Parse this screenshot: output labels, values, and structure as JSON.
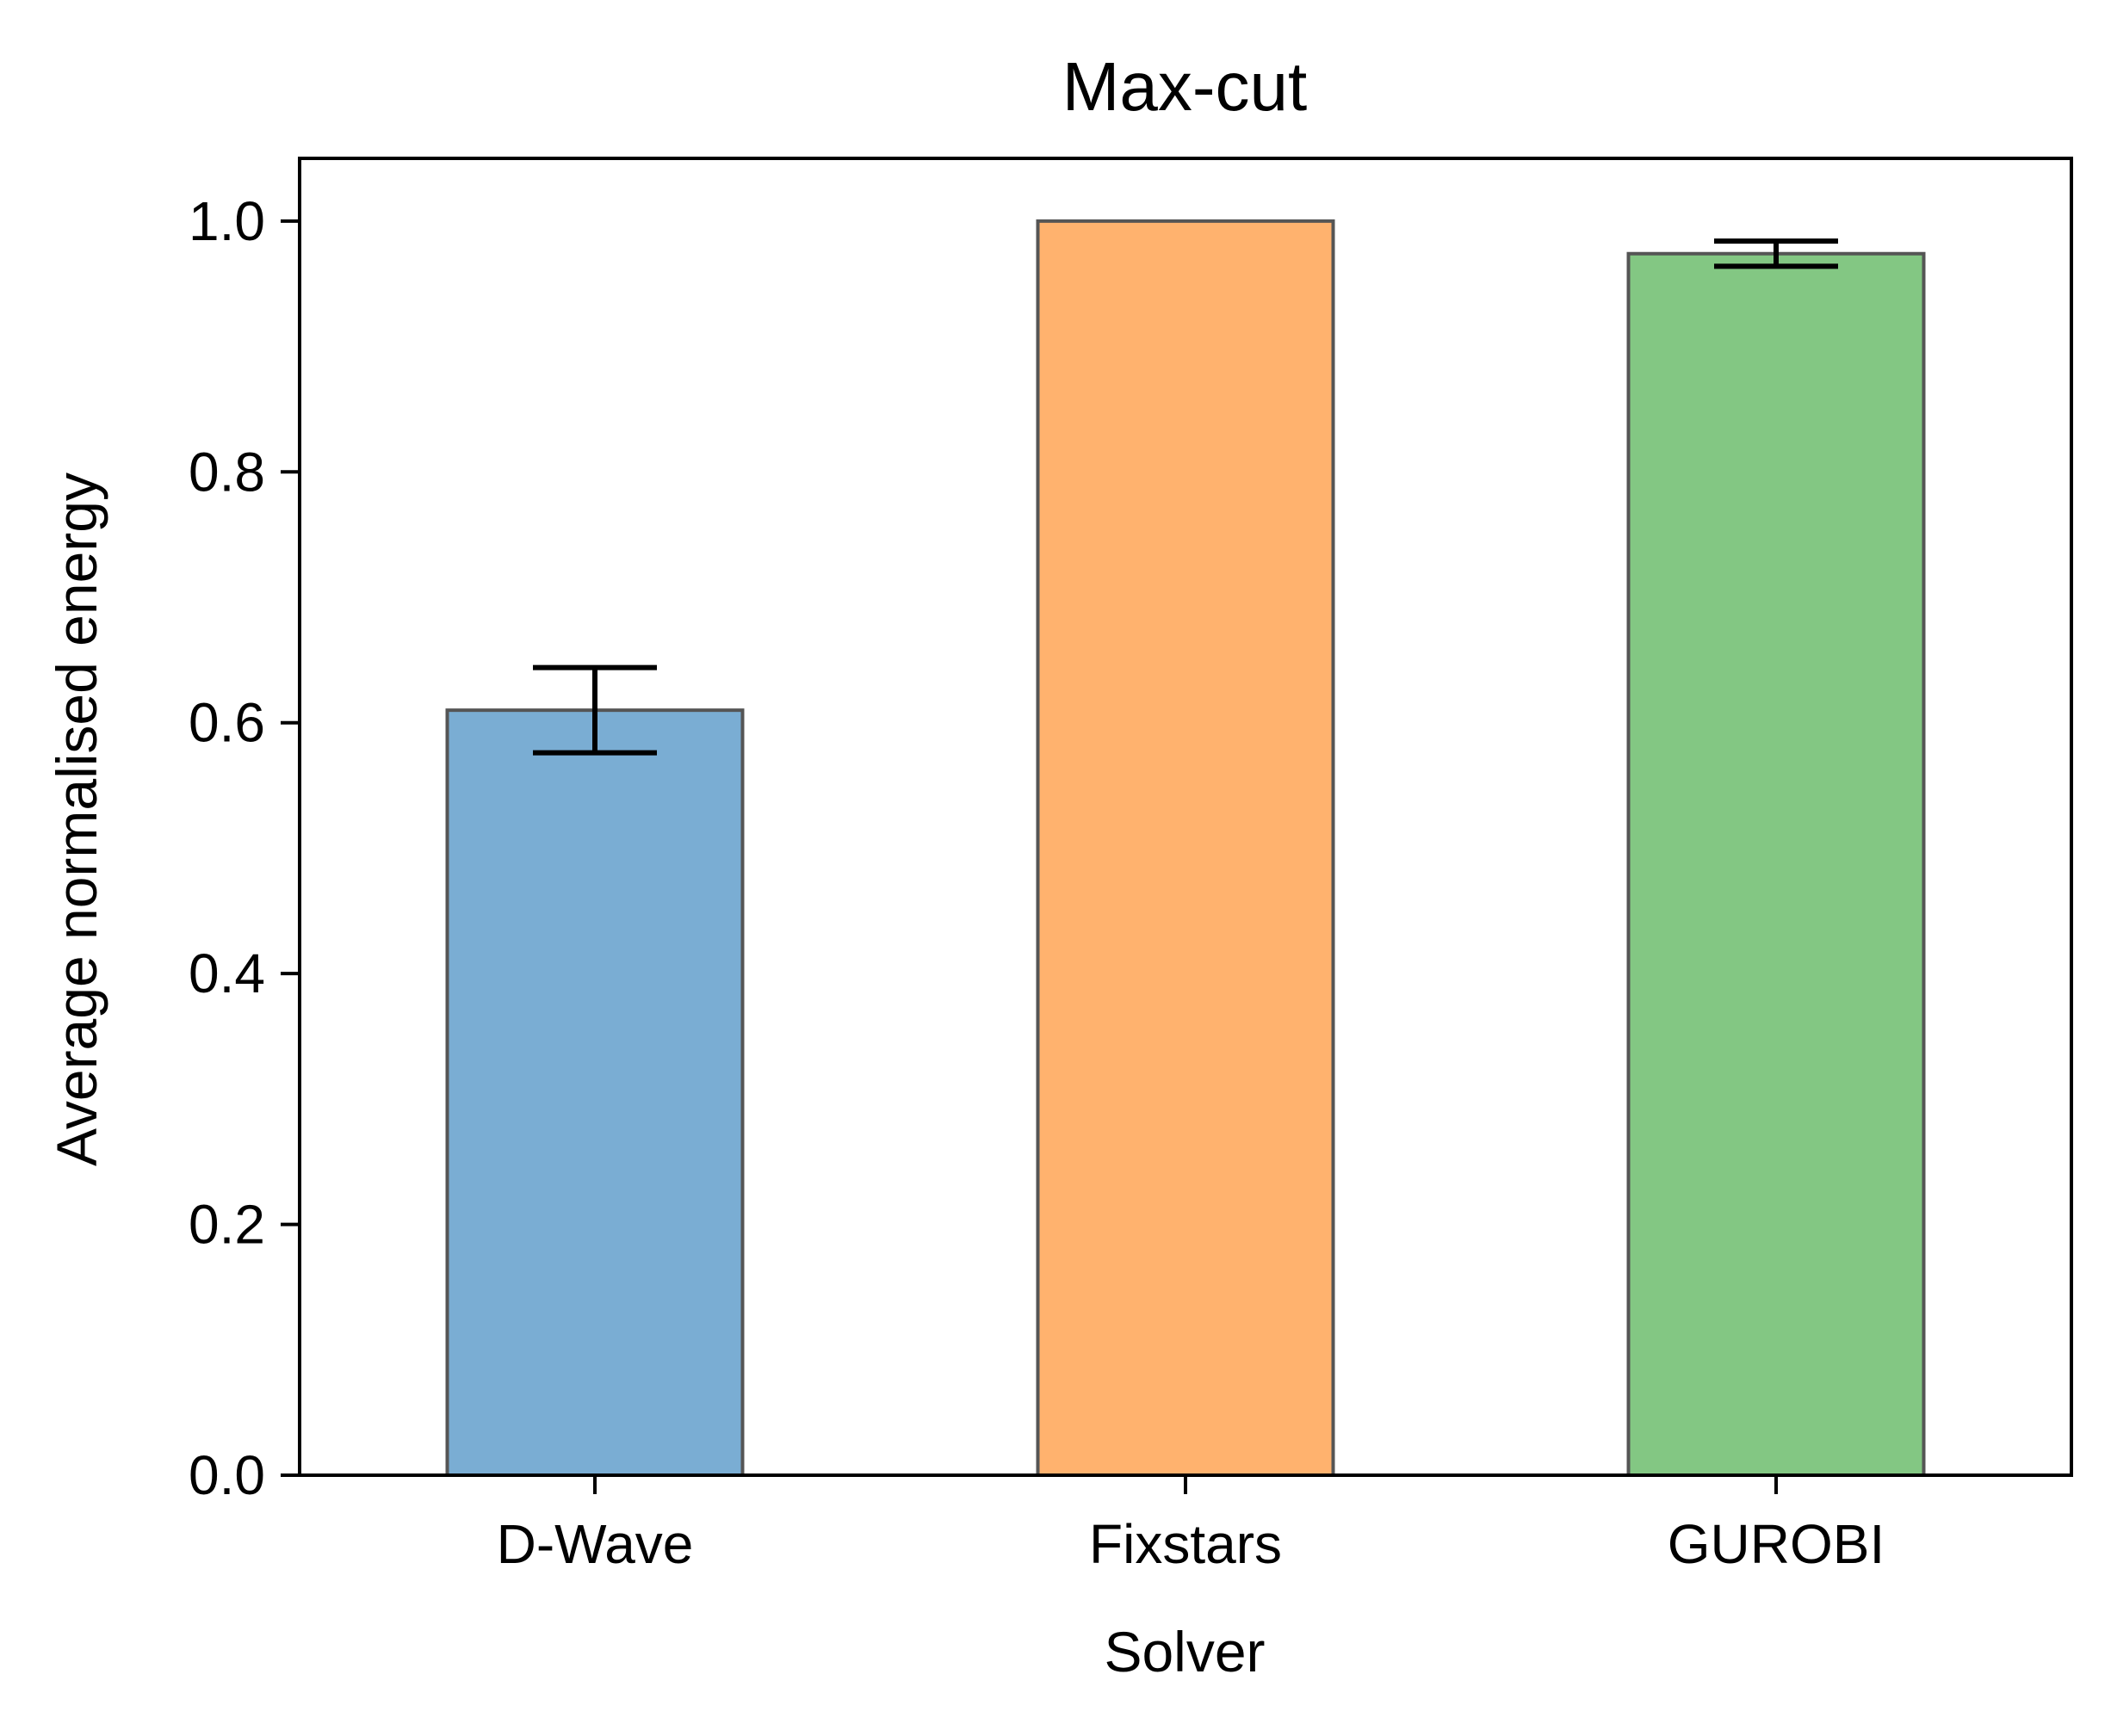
{
  "chart_data": {
    "type": "bar",
    "title": "Max-cut",
    "xlabel": "Solver",
    "ylabel": "Average normalised energy",
    "categories": [
      "D-Wave",
      "Fixstars",
      "GUROBI"
    ],
    "values": [
      0.61,
      1.0,
      0.974
    ],
    "errors": [
      0.034,
      0.0,
      0.01
    ],
    "colors": [
      "#7aadd3",
      "#ffb26e",
      "#83c783"
    ],
    "ylim": [
      0,
      1.05
    ],
    "yticks": [
      "0.0",
      "0.2",
      "0.4",
      "0.6",
      "0.8",
      "1.0"
    ],
    "grid": false
  }
}
